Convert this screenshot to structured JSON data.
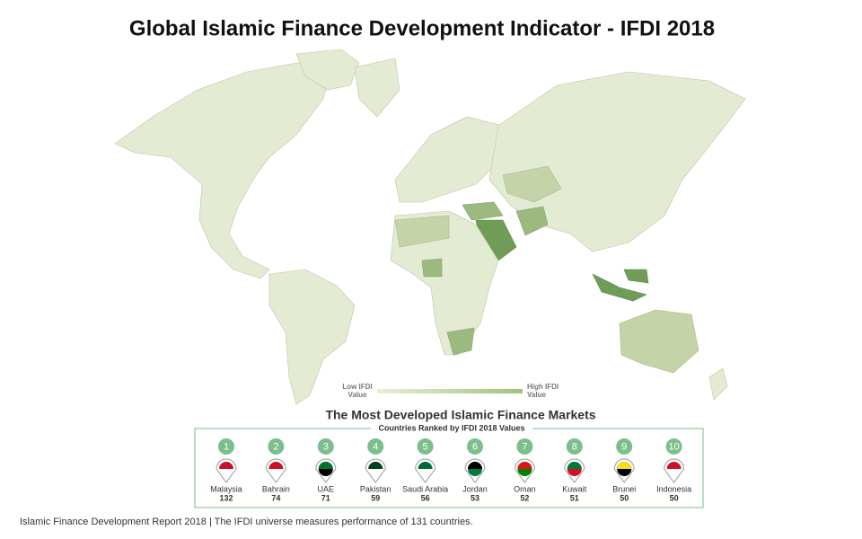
{
  "title": "Global Islamic Finance Development Indicator - IFDI 2018",
  "legend": {
    "low": [
      "Low IFDI",
      "Value"
    ],
    "high": [
      "High IFDI",
      "Value"
    ]
  },
  "ranking": {
    "title": "The Most Developed Islamic Finance Markets",
    "subtitle": "Countries Ranked by IFDI 2018 Values",
    "items": [
      {
        "rank": 1,
        "country": "Malaysia",
        "value": 132
      },
      {
        "rank": 2,
        "country": "Bahrain",
        "value": 74
      },
      {
        "rank": 3,
        "country": "UAE",
        "value": 71
      },
      {
        "rank": 4,
        "country": "Pakistan",
        "value": 59
      },
      {
        "rank": 5,
        "country": "Saudi Arabia",
        "value": 56
      },
      {
        "rank": 6,
        "country": "Jordan",
        "value": 53
      },
      {
        "rank": 7,
        "country": "Oman",
        "value": 52
      },
      {
        "rank": 8,
        "country": "Kuwait",
        "value": 51
      },
      {
        "rank": 9,
        "country": "Brunei",
        "value": 50
      },
      {
        "rank": 10,
        "country": "Indonesia",
        "value": 50
      }
    ]
  },
  "footer": "Islamic Finance Development Report 2018 | The IFDI universe measures performance of 131 countries."
}
